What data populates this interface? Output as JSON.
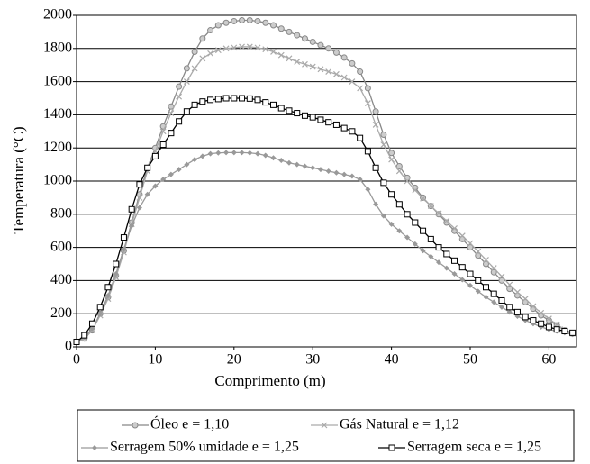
{
  "chart_data": {
    "type": "line",
    "x_label": "Comprimento (m)",
    "y_label": "Temperatura (°C)",
    "x": [
      0,
      1,
      2,
      3,
      4,
      5,
      6,
      7,
      8,
      9,
      10,
      11,
      12,
      13,
      14,
      15,
      16,
      17,
      18,
      19,
      20,
      21,
      22,
      23,
      24,
      25,
      26,
      27,
      28,
      29,
      30,
      31,
      32,
      33,
      34,
      35,
      36,
      37,
      38,
      39,
      40,
      41,
      42,
      43,
      44,
      45,
      46,
      47,
      48,
      49,
      50,
      51,
      52,
      53,
      54,
      55,
      56,
      57,
      58,
      59,
      60,
      61,
      62,
      63
    ],
    "series": [
      {
        "name": "Óleo e = 1,10",
        "color": "#888888",
        "marker": "circle",
        "values": [
          30,
          50,
          100,
          200,
          300,
          430,
          580,
          750,
          920,
          1080,
          1200,
          1330,
          1450,
          1570,
          1680,
          1780,
          1860,
          1910,
          1940,
          1955,
          1965,
          1970,
          1970,
          1965,
          1955,
          1940,
          1920,
          1900,
          1880,
          1860,
          1840,
          1820,
          1800,
          1775,
          1745,
          1710,
          1660,
          1560,
          1420,
          1280,
          1170,
          1090,
          1020,
          960,
          900,
          850,
          800,
          750,
          700,
          650,
          600,
          550,
          500,
          450,
          400,
          350,
          310,
          270,
          230,
          190,
          160,
          130,
          100,
          80
        ]
      },
      {
        "name": "Gás Natural e = 1,12",
        "color": "#aaaaaa",
        "marker": "x",
        "values": [
          30,
          50,
          100,
          190,
          290,
          420,
          570,
          740,
          900,
          1060,
          1180,
          1300,
          1410,
          1510,
          1600,
          1680,
          1740,
          1770,
          1790,
          1800,
          1805,
          1810,
          1810,
          1805,
          1795,
          1780,
          1760,
          1740,
          1720,
          1705,
          1690,
          1675,
          1660,
          1645,
          1625,
          1600,
          1560,
          1470,
          1340,
          1220,
          1130,
          1060,
          1000,
          945,
          895,
          850,
          805,
          760,
          715,
          670,
          625,
          575,
          525,
          475,
          425,
          375,
          330,
          290,
          245,
          205,
          170,
          135,
          105,
          80
        ]
      },
      {
        "name": "Serragem 50% umidade e = 1,25",
        "color": "#999999",
        "marker": "diamond",
        "values": [
          30,
          60,
          110,
          200,
          310,
          440,
          590,
          730,
          840,
          920,
          970,
          1010,
          1040,
          1070,
          1100,
          1130,
          1150,
          1165,
          1170,
          1172,
          1172,
          1172,
          1170,
          1165,
          1155,
          1140,
          1125,
          1110,
          1100,
          1090,
          1080,
          1070,
          1060,
          1050,
          1040,
          1030,
          1010,
          950,
          860,
          790,
          740,
          700,
          660,
          620,
          580,
          545,
          510,
          475,
          440,
          405,
          370,
          335,
          300,
          270,
          240,
          210,
          185,
          160,
          140,
          120,
          105,
          95,
          85,
          75
        ]
      },
      {
        "name": "Serragem seca e = 1,25",
        "color": "#000000",
        "marker": "square",
        "values": [
          30,
          70,
          140,
          240,
          360,
          500,
          660,
          830,
          980,
          1080,
          1150,
          1220,
          1290,
          1360,
          1420,
          1460,
          1480,
          1490,
          1495,
          1500,
          1500,
          1500,
          1498,
          1490,
          1475,
          1460,
          1440,
          1425,
          1410,
          1395,
          1385,
          1370,
          1355,
          1340,
          1320,
          1300,
          1260,
          1180,
          1080,
          990,
          920,
          860,
          800,
          750,
          700,
          650,
          600,
          560,
          520,
          480,
          440,
          400,
          360,
          320,
          280,
          240,
          210,
          180,
          160,
          140,
          120,
          105,
          95,
          85
        ]
      }
    ],
    "xlim": [
      0,
      63.5
    ],
    "xticks": [
      0,
      10,
      20,
      30,
      40,
      50,
      60
    ],
    "ylim": [
      0,
      2000
    ],
    "yticks": [
      0,
      200,
      400,
      600,
      800,
      1000,
      1200,
      1400,
      1600,
      1800,
      2000
    ],
    "grid": true
  }
}
